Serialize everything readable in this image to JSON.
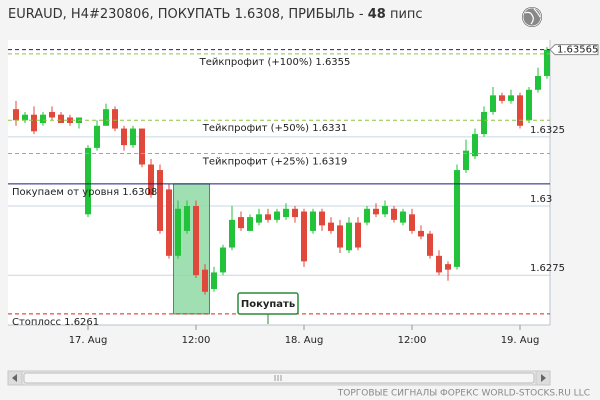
{
  "chart_data": {
    "type": "candlestick",
    "title": {
      "text": "EURAUD, H4#230806, ПОКУПАТЬ 1.6308, ПРИБЫЛЬ -",
      "profit": 48,
      "unit": "пипс"
    },
    "footer": "ТОРГОВЫЕ СИГНАЛЫ ФОРЕКС WORLD-STOCKS.RU LLC",
    "button": "Покупать",
    "categories": [
      null,
      null,
      null,
      null,
      null,
      null,
      null,
      null,
      "17. Aug",
      null,
      null,
      null,
      null,
      null,
      null,
      null,
      null,
      null,
      null,
      null,
      "12:00",
      null,
      null,
      null,
      null,
      null,
      null,
      null,
      null,
      null,
      null,
      null,
      "18. Aug",
      null,
      null,
      null,
      null,
      null,
      null,
      null,
      null,
      null,
      null,
      null,
      "12:00",
      null,
      null,
      null,
      null,
      null,
      null,
      null,
      null,
      null,
      null,
      null,
      "19. Aug",
      null,
      null,
      null
    ],
    "series": [
      {
        "up_color": "#22c33a",
        "down_color": "#e0483c",
        "open": [
          1.6335,
          1.6331,
          1.6333,
          1.633,
          1.6334,
          1.6333,
          1.6332,
          1.633,
          1.6297,
          1.6321,
          1.6329,
          1.6335,
          1.6328,
          1.6322,
          1.6328,
          1.6315,
          1.6313,
          1.6306,
          1.6282,
          1.6291,
          1.63,
          1.6277,
          1.627,
          1.6276,
          1.6285,
          1.6296,
          1.6291,
          1.6294,
          1.6297,
          1.6295,
          1.6296,
          1.6299,
          1.6298,
          1.6291,
          1.6298,
          1.6294,
          1.6293,
          1.6284,
          1.6294,
          1.6294,
          1.6299,
          1.6297,
          1.6299,
          1.6294,
          1.6297,
          1.6291,
          1.629,
          1.6282,
          1.6279,
          1.6278,
          1.6313,
          1.6318,
          1.6326,
          1.6334,
          1.634,
          1.6338,
          1.634,
          1.6331,
          1.6342,
          1.6347
        ],
        "high": [
          1.6338,
          1.6334,
          1.6336,
          1.6334,
          1.6336,
          1.6334,
          1.6333,
          1.6332,
          1.6322,
          1.6331,
          1.6337,
          1.6336,
          1.6329,
          1.6329,
          1.6328,
          1.6317,
          1.6315,
          1.6308,
          1.6302,
          1.6302,
          1.6302,
          1.6279,
          1.6278,
          1.6286,
          1.63,
          1.6298,
          1.6297,
          1.6299,
          1.6299,
          1.6299,
          1.6301,
          1.63,
          1.6299,
          1.6299,
          1.6299,
          1.6296,
          1.6295,
          1.6296,
          1.6296,
          1.63,
          1.6301,
          1.6302,
          1.63,
          1.6299,
          1.6299,
          1.6293,
          1.6291,
          1.6284,
          1.628,
          1.6315,
          1.6324,
          1.6328,
          1.6336,
          1.6343,
          1.6341,
          1.6342,
          1.6341,
          1.6343,
          1.635,
          1.63575
        ],
        "low": [
          1.6329,
          1.633,
          1.6326,
          1.6329,
          1.6331,
          1.633,
          1.6329,
          1.6328,
          1.6296,
          1.632,
          1.6329,
          1.6327,
          1.632,
          1.6321,
          1.6314,
          1.6303,
          1.629,
          1.6281,
          1.6281,
          1.629,
          1.6274,
          1.6268,
          1.6269,
          1.6275,
          1.6284,
          1.6291,
          1.6291,
          1.6293,
          1.6294,
          1.6294,
          1.6295,
          1.6294,
          1.6278,
          1.629,
          1.6291,
          1.629,
          1.6283,
          1.6283,
          1.6284,
          1.6293,
          1.6296,
          1.6296,
          1.6294,
          1.6293,
          1.629,
          1.6288,
          1.6281,
          1.6275,
          1.6273,
          1.6277,
          1.6312,
          1.6317,
          1.6325,
          1.6333,
          1.6337,
          1.6337,
          1.6328,
          1.633,
          1.6341,
          1.6346
        ],
        "close": [
          1.6331,
          1.6333,
          1.6327,
          1.6333,
          1.6332,
          1.633,
          1.633,
          1.6332,
          1.6321,
          1.6329,
          1.6335,
          1.6328,
          1.6322,
          1.6328,
          1.6315,
          1.6304,
          1.6291,
          1.6282,
          1.6299,
          1.63,
          1.6275,
          1.6269,
          1.6276,
          1.6285,
          1.6295,
          1.6292,
          1.6296,
          1.6297,
          1.6295,
          1.6298,
          1.6299,
          1.6296,
          1.628,
          1.6298,
          1.6293,
          1.6291,
          1.6285,
          1.6294,
          1.6285,
          1.6299,
          1.6297,
          1.63,
          1.6295,
          1.6298,
          1.6291,
          1.6289,
          1.6282,
          1.6276,
          1.6277,
          1.6313,
          1.632,
          1.6326,
          1.6334,
          1.634,
          1.6338,
          1.634,
          1.6329,
          1.6342,
          1.6347,
          1.63565
        ]
      }
    ],
    "ylim": [
      1.6257,
      1.636
    ],
    "yticks": [
      1.6275,
      1.63,
      1.6325
    ],
    "grid": true,
    "last_price": 1.63565,
    "levels": [
      {
        "label": "Тейкпрофит (+100%) 1.6355",
        "value": 1.6355,
        "color": "#8cc63f",
        "style": "dashed",
        "align": "center"
      },
      {
        "label": "Тейкпрофит (+50%) 1.6331",
        "value": 1.6331,
        "color": "#8cc63f",
        "style": "dashed",
        "align": "center"
      },
      {
        "label": "Тейкпрофит (+25%) 1.6319",
        "value": 1.6319,
        "color": "#8cc63f",
        "style": "dashed",
        "align": "center"
      },
      {
        "label": "Покупаем от уровня 1.6308",
        "value": 1.6308,
        "color": "#1a1a7a",
        "style": "solid",
        "align": "left"
      },
      {
        "label": "Стоплосс 1.6261",
        "value": 1.6261,
        "color": "#e02020",
        "style": "dashed",
        "align": "left"
      }
    ]
  }
}
